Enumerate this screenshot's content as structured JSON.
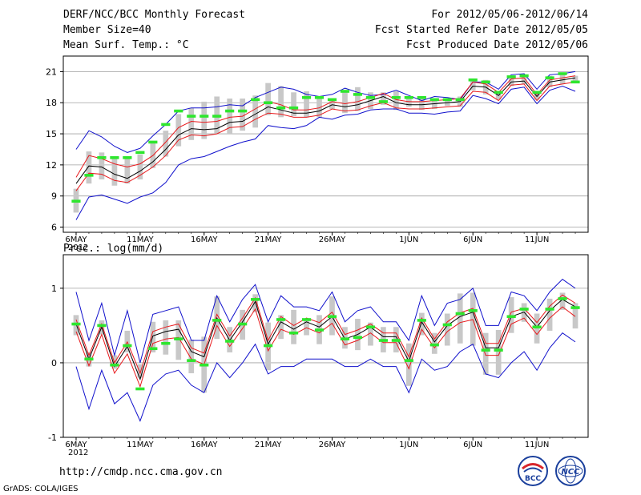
{
  "header": {
    "left": [
      "DERF/NCC/BCC Monthly Forecast",
      "Member Size=40",
      "Mean Surf. Temp.: °C"
    ],
    "right": [
      "For 2012/05/06-2012/06/14",
      "Fcst Started Refer Date 2012/05/05",
      "Fcst Produced Date 2012/05/06"
    ]
  },
  "footer": {
    "url": "http://cmdp.ncc.cma.gov.cn",
    "credit": "GrADS: COLA/IGES",
    "logo_left_text": "BCC",
    "logo_right_text": "NCC"
  },
  "colors": {
    "mean": "#000000",
    "spread": "#e8191c",
    "extreme": "#1010cc",
    "box": "#c8c8c8",
    "climo": "#2ee62e",
    "teal": "#22bcbc"
  },
  "chart_data": [
    {
      "type": "line",
      "title": "",
      "ylabel": "Mean Surf. Temp.: °C",
      "ylim": [
        5.5,
        22.5
      ],
      "yticks": [
        6,
        9,
        12,
        15,
        18,
        21
      ],
      "x": [
        1,
        2,
        3,
        4,
        5,
        6,
        7,
        8,
        9,
        10,
        11,
        12,
        13,
        14,
        15,
        16,
        17,
        18,
        19,
        20,
        21,
        22,
        23,
        24,
        25,
        26,
        27,
        28,
        29,
        30,
        31,
        32,
        33,
        34,
        35,
        36,
        37,
        38,
        39,
        40
      ],
      "xlim": [
        0,
        41
      ],
      "xticks": [
        {
          "x": 1,
          "label": "6MAY",
          "sub": "2012"
        },
        {
          "x": 6,
          "label": "11MAY"
        },
        {
          "x": 11,
          "label": "16MAY"
        },
        {
          "x": 16,
          "label": "21MAY"
        },
        {
          "x": 21,
          "label": "26MAY"
        },
        {
          "x": 27,
          "label": "1JUN"
        },
        {
          "x": 32,
          "label": "6JUN"
        },
        {
          "x": 37,
          "label": "11JUN"
        }
      ],
      "series": [
        {
          "name": "ensemble-max",
          "values": [
            13.5,
            15.3,
            14.7,
            13.8,
            13.2,
            13.6,
            14.8,
            15.9,
            17.2,
            17.5,
            17.5,
            17.6,
            17.8,
            17.7,
            18.5,
            19.0,
            19.5,
            19.3,
            18.8,
            18.6,
            18.8,
            19.4,
            19.0,
            18.7,
            18.8,
            19.2,
            18.7,
            18.2,
            18.6,
            18.5,
            18.3,
            20.0,
            20.0,
            19.3,
            20.7,
            20.8,
            19.3,
            20.7,
            20.8,
            21.0
          ]
        },
        {
          "name": "upper-spread",
          "values": [
            10.8,
            12.9,
            12.6,
            12.1,
            11.8,
            12.1,
            12.9,
            14.2,
            15.6,
            16.2,
            16.1,
            16.2,
            16.6,
            16.7,
            17.4,
            18.1,
            17.8,
            17.3,
            17.3,
            17.5,
            18.1,
            17.9,
            18.1,
            18.5,
            18.9,
            18.3,
            18.1,
            18.1,
            18.2,
            18.3,
            18.4,
            20.0,
            19.8,
            19.0,
            20.3,
            20.4,
            18.8,
            20.2,
            20.4,
            20.6
          ]
        },
        {
          "name": "ensemble-mean",
          "values": [
            10.2,
            11.9,
            11.8,
            11.1,
            10.7,
            11.4,
            12.3,
            13.5,
            14.9,
            15.5,
            15.4,
            15.5,
            16.1,
            16.2,
            16.9,
            17.6,
            17.3,
            17.0,
            17.0,
            17.2,
            17.8,
            17.6,
            17.8,
            18.2,
            18.6,
            18.0,
            17.8,
            17.8,
            17.9,
            18.0,
            18.1,
            19.6,
            19.5,
            18.7,
            20.0,
            20.1,
            18.6,
            20.0,
            20.2,
            20.4
          ]
        },
        {
          "name": "lower-spread",
          "values": [
            9.5,
            11.2,
            11.1,
            10.5,
            10.3,
            11.0,
            11.8,
            12.9,
            14.4,
            14.9,
            14.8,
            15.0,
            15.6,
            15.7,
            16.4,
            17.0,
            16.9,
            16.6,
            16.6,
            16.8,
            17.4,
            17.2,
            17.3,
            17.7,
            18.0,
            17.5,
            17.4,
            17.4,
            17.5,
            17.6,
            17.7,
            19.1,
            19.0,
            18.2,
            19.7,
            19.8,
            18.2,
            19.6,
            19.8,
            20.0
          ]
        },
        {
          "name": "ensemble-min",
          "values": [
            6.7,
            8.9,
            9.1,
            8.7,
            8.3,
            8.9,
            9.3,
            10.3,
            12.0,
            12.6,
            12.8,
            13.3,
            13.8,
            14.2,
            14.5,
            15.8,
            15.6,
            15.5,
            15.8,
            16.6,
            16.4,
            16.8,
            16.9,
            17.3,
            17.4,
            17.4,
            17.0,
            17.0,
            16.9,
            17.1,
            17.2,
            18.7,
            18.4,
            17.9,
            19.3,
            19.5,
            17.9,
            19.2,
            19.6,
            19.1
          ]
        }
      ],
      "boxes": {
        "low": [
          7.4,
          10.2,
          10.6,
          10.0,
          10.2,
          10.6,
          11.7,
          12.8,
          13.8,
          14.4,
          14.5,
          15.0,
          15.0,
          15.3,
          15.6,
          16.8,
          16.6,
          16.7,
          16.6,
          16.6,
          17.4,
          17.0,
          17.2,
          17.4,
          17.8,
          17.3,
          17.6,
          17.3,
          17.4,
          17.7,
          17.6,
          19.2,
          18.8,
          18.3,
          19.6,
          19.8,
          18.3,
          19.5,
          19.8,
          20.0
        ],
        "high": [
          9.7,
          13.3,
          13.2,
          12.8,
          12.6,
          13.0,
          14.3,
          15.3,
          16.9,
          17.5,
          18.1,
          18.6,
          18.4,
          18.4,
          18.7,
          19.9,
          19.6,
          19.0,
          19.1,
          18.6,
          18.3,
          19.2,
          19.5,
          19.0,
          19.0,
          19.1,
          18.4,
          18.6,
          18.4,
          18.4,
          18.6,
          20.3,
          20.2,
          19.1,
          20.6,
          20.7,
          19.1,
          20.6,
          20.9,
          20.6
        ]
      },
      "climo": [
        8.5,
        11.0,
        12.7,
        12.7,
        12.7,
        13.2,
        14.2,
        15.9,
        17.2,
        16.7,
        16.7,
        16.7,
        17.2,
        17.2,
        18.3,
        18.0,
        17.5,
        17.5,
        18.5,
        18.5,
        18.3,
        19.1,
        18.8,
        18.5,
        18.1,
        18.5,
        18.5,
        18.5,
        18.3,
        18.3,
        18.3,
        20.2,
        20.0,
        19.0,
        20.5,
        20.6,
        19.0,
        20.4,
        20.8,
        20.0
      ]
    },
    {
      "type": "line",
      "title": "Prec.: log(mm/d)",
      "ylabel": "Prec.: log(mm/d)",
      "ylim": [
        -1,
        1.45
      ],
      "yticks": [
        -1,
        0,
        1
      ],
      "x": [
        1,
        2,
        3,
        4,
        5,
        6,
        7,
        8,
        9,
        10,
        11,
        12,
        13,
        14,
        15,
        16,
        17,
        18,
        19,
        20,
        21,
        22,
        23,
        24,
        25,
        26,
        27,
        28,
        29,
        30,
        31,
        32,
        33,
        34,
        35,
        36,
        37,
        38,
        39,
        40
      ],
      "xlim": [
        0,
        41
      ],
      "xticks": [
        {
          "x": 1,
          "label": "6MAY",
          "sub": "2012"
        },
        {
          "x": 6,
          "label": "11MAY"
        },
        {
          "x": 11,
          "label": "16MAY"
        },
        {
          "x": 16,
          "label": "21MAY"
        },
        {
          "x": 21,
          "label": "26MAY"
        },
        {
          "x": 27,
          "label": "1JUN"
        },
        {
          "x": 32,
          "label": "6JUN"
        },
        {
          "x": 37,
          "label": "11JUN"
        }
      ],
      "series": [
        {
          "name": "ensemble-max",
          "values": [
            0.95,
            0.3,
            0.8,
            0.1,
            0.7,
            0.0,
            0.65,
            0.7,
            0.75,
            0.3,
            0.3,
            0.9,
            0.55,
            0.85,
            1.05,
            0.55,
            0.9,
            0.75,
            0.75,
            0.7,
            0.95,
            0.55,
            0.7,
            0.75,
            0.55,
            0.55,
            0.3,
            0.9,
            0.5,
            0.8,
            0.85,
            1.0,
            0.5,
            0.5,
            0.95,
            0.9,
            0.7,
            0.95,
            1.12,
            1.0
          ]
        },
        {
          "name": "upper-spread",
          "values": [
            0.58,
            0.1,
            0.52,
            0.0,
            0.28,
            -0.14,
            0.42,
            0.48,
            0.52,
            0.2,
            0.13,
            0.65,
            0.36,
            0.6,
            0.87,
            0.3,
            0.62,
            0.5,
            0.6,
            0.54,
            0.68,
            0.38,
            0.44,
            0.52,
            0.4,
            0.4,
            0.08,
            0.6,
            0.32,
            0.55,
            0.67,
            0.73,
            0.26,
            0.26,
            0.68,
            0.73,
            0.54,
            0.76,
            0.91,
            0.8
          ]
        },
        {
          "name": "ensemble-mean",
          "values": [
            0.52,
            0.05,
            0.48,
            -0.05,
            0.22,
            -0.22,
            0.36,
            0.42,
            0.45,
            0.15,
            0.08,
            0.6,
            0.3,
            0.55,
            0.82,
            0.25,
            0.55,
            0.45,
            0.55,
            0.48,
            0.62,
            0.32,
            0.38,
            0.48,
            0.35,
            0.35,
            0.02,
            0.55,
            0.28,
            0.5,
            0.62,
            0.68,
            0.2,
            0.2,
            0.62,
            0.68,
            0.48,
            0.7,
            0.85,
            0.75
          ]
        },
        {
          "name": "lower-spread",
          "values": [
            0.42,
            -0.04,
            0.38,
            -0.14,
            0.12,
            -0.32,
            0.26,
            0.32,
            0.34,
            0.05,
            -0.02,
            0.5,
            0.22,
            0.46,
            0.72,
            0.16,
            0.45,
            0.38,
            0.47,
            0.4,
            0.53,
            0.24,
            0.3,
            0.4,
            0.27,
            0.27,
            -0.08,
            0.45,
            0.2,
            0.42,
            0.54,
            0.58,
            0.1,
            0.1,
            0.52,
            0.6,
            0.38,
            0.6,
            0.75,
            0.62
          ]
        },
        {
          "name": "ensemble-min",
          "values": [
            -0.05,
            -0.62,
            -0.1,
            -0.55,
            -0.4,
            -0.78,
            -0.3,
            -0.15,
            -0.1,
            -0.3,
            -0.4,
            0.0,
            -0.2,
            0.0,
            0.25,
            -0.15,
            -0.05,
            -0.05,
            0.05,
            0.05,
            0.05,
            -0.05,
            -0.05,
            0.05,
            -0.05,
            -0.05,
            -0.4,
            0.05,
            -0.1,
            -0.05,
            0.15,
            0.25,
            -0.15,
            -0.2,
            0.0,
            0.15,
            -0.1,
            0.2,
            0.4,
            0.28
          ]
        }
      ],
      "boxes": {
        "low": [
          0.37,
          -0.05,
          0.38,
          -0.08,
          0.14,
          -0.2,
          0.14,
          0.11,
          0.04,
          -0.14,
          -0.4,
          0.32,
          0.14,
          0.31,
          0.68,
          -0.1,
          0.32,
          0.25,
          0.37,
          0.25,
          0.37,
          0.19,
          0.17,
          0.23,
          0.14,
          0.14,
          -0.31,
          0.37,
          0.12,
          0.23,
          0.26,
          0.23,
          -0.16,
          -0.16,
          0.4,
          0.55,
          0.26,
          0.43,
          0.71,
          0.46
        ]
      },
      "boxes_high": [
        0.64,
        0.14,
        0.57,
        0.1,
        0.43,
        -0.02,
        0.55,
        0.57,
        0.57,
        0.31,
        0.35,
        0.89,
        0.48,
        0.71,
        0.92,
        0.54,
        0.64,
        0.71,
        0.59,
        0.64,
        0.89,
        0.48,
        0.59,
        0.54,
        0.48,
        0.48,
        0.26,
        0.67,
        0.4,
        0.66,
        0.93,
        0.94,
        0.4,
        0.44,
        0.88,
        0.8,
        0.66,
        0.86,
        0.94,
        0.8
      ],
      "climo": [
        0.52,
        0.05,
        0.5,
        -0.03,
        0.23,
        -0.35,
        0.19,
        0.26,
        0.32,
        0.03,
        -0.03,
        0.57,
        0.29,
        0.52,
        0.85,
        0.23,
        0.58,
        0.4,
        0.58,
        0.44,
        0.62,
        0.32,
        0.34,
        0.48,
        0.3,
        0.3,
        0.03,
        0.57,
        0.24,
        0.51,
        0.66,
        0.7,
        0.17,
        0.17,
        0.62,
        0.72,
        0.48,
        0.72,
        0.86,
        0.74
      ]
    }
  ]
}
